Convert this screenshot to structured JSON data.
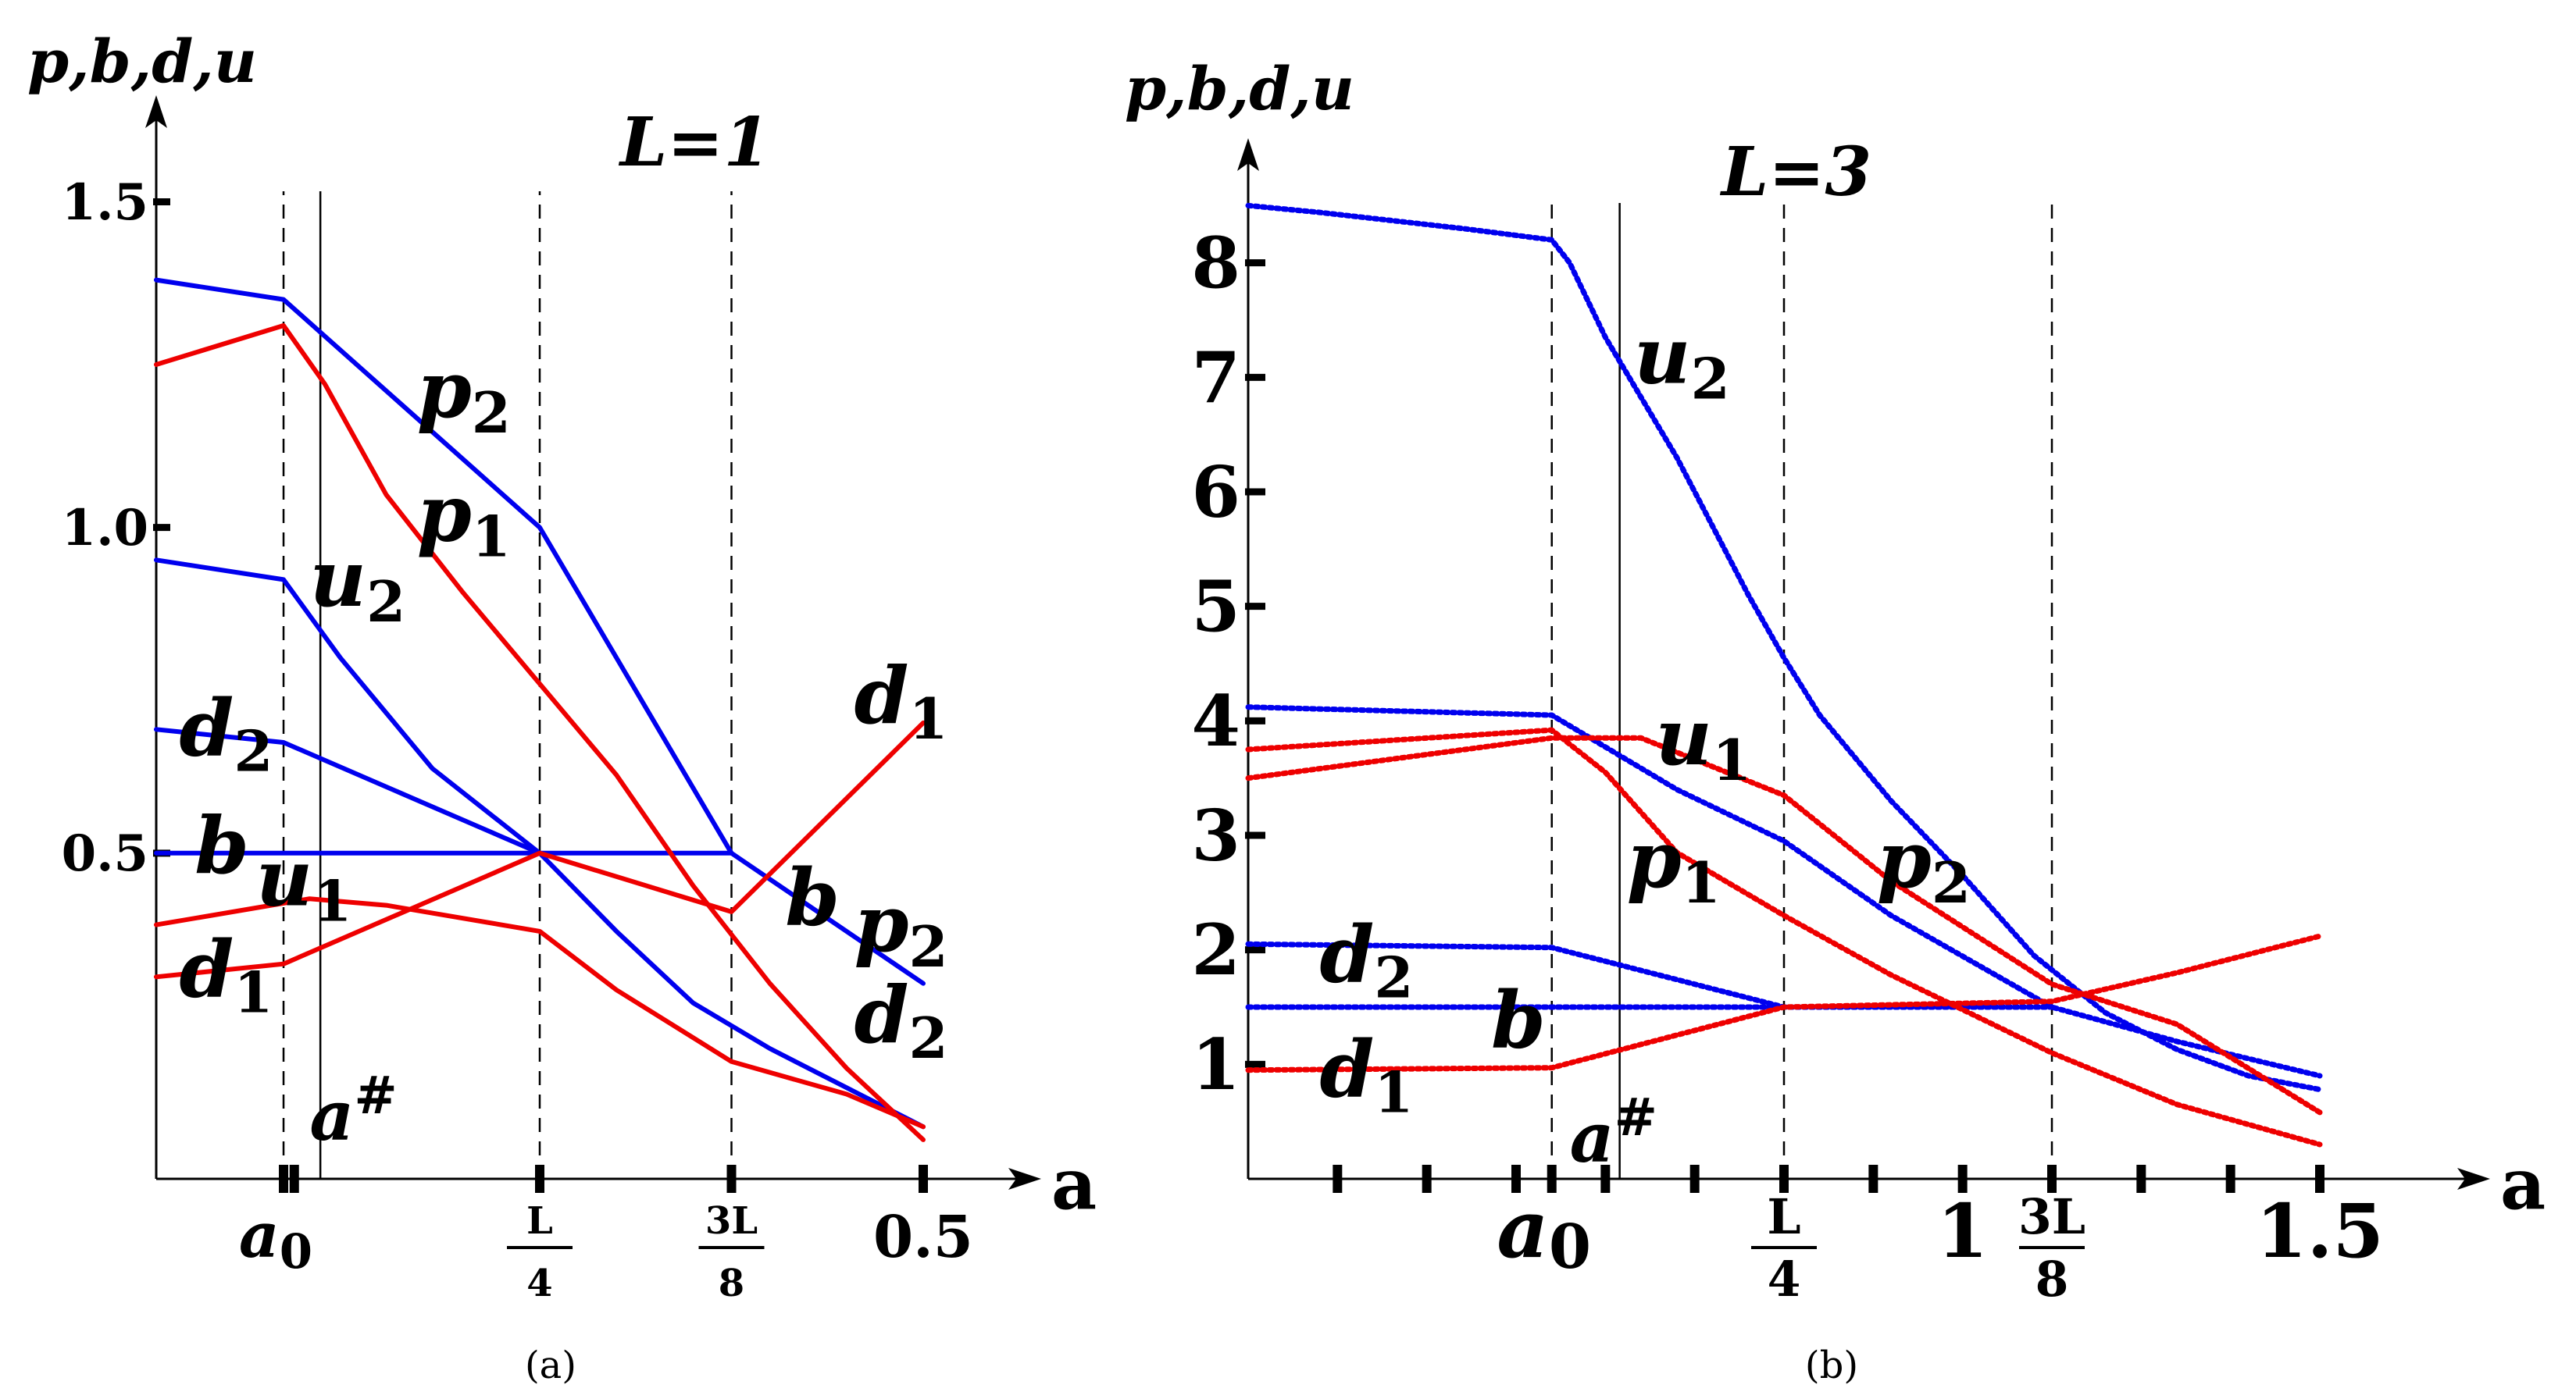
{
  "chart_data": [
    {
      "id": "a",
      "type": "line",
      "caption": "(a)",
      "title": "L=1",
      "ylabel": "p,b,d,u",
      "xlabel": "a",
      "xlim": [
        0,
        0.5
      ],
      "ylim": [
        0,
        1.6
      ],
      "grid": false,
      "yticks": [
        {
          "value": 0.5,
          "label": "0.5"
        },
        {
          "value": 1.0,
          "label": "1.0"
        },
        {
          "value": 1.5,
          "label": "1.5"
        }
      ],
      "xticks": [
        {
          "value": 0.083,
          "label": ""
        },
        {
          "value": 0.09,
          "label": ""
        },
        {
          "value": 0.25,
          "label": ""
        },
        {
          "value": 0.375,
          "label": ""
        },
        {
          "value": 0.5,
          "label": ""
        }
      ],
      "xtick_labels": [
        {
          "value": 0.083,
          "label": "a",
          "sub": "0"
        },
        {
          "value": 0.25,
          "frac": [
            "L",
            "4"
          ]
        },
        {
          "value": 0.375,
          "frac": [
            "3L",
            "8"
          ]
        },
        {
          "value": 0.5,
          "label": "0.5"
        }
      ],
      "vlines": [
        {
          "value": 0.083,
          "style": "dashed"
        },
        {
          "value": 0.107,
          "style": "solid"
        },
        {
          "value": 0.25,
          "style": "dashed"
        },
        {
          "value": 0.375,
          "style": "dashed"
        }
      ],
      "a_sharp": {
        "label": "a",
        "sup": "#",
        "x": 0.1,
        "y": 0.06
      },
      "series": [
        {
          "color": "#0000ee",
          "style": "line",
          "x": [
            0,
            0.083,
            0.25,
            0.375,
            0.5
          ],
          "y": [
            1.38,
            1.35,
            1.0,
            0.5,
            0.3
          ]
        },
        {
          "color": "#0000ee",
          "style": "line",
          "x": [
            0,
            0.083,
            0.12,
            0.18,
            0.25,
            0.3,
            0.35,
            0.4,
            0.45,
            0.5
          ],
          "y": [
            0.95,
            0.92,
            0.8,
            0.63,
            0.5,
            0.38,
            0.27,
            0.2,
            0.14,
            0.08
          ]
        },
        {
          "color": "#0000ee",
          "style": "line",
          "x": [
            0,
            0.083,
            0.25
          ],
          "y": [
            0.69,
            0.67,
            0.5
          ]
        },
        {
          "color": "#0000ee",
          "style": "line",
          "x": [
            0,
            0.375
          ],
          "y": [
            0.5,
            0.5
          ]
        },
        {
          "color": "#ee0000",
          "style": "line",
          "x": [
            0,
            0.083,
            0.11,
            0.15,
            0.2,
            0.25,
            0.3,
            0.35,
            0.4,
            0.45,
            0.5
          ],
          "y": [
            1.25,
            1.31,
            1.22,
            1.05,
            0.9,
            0.76,
            0.62,
            0.45,
            0.3,
            0.17,
            0.06
          ]
        },
        {
          "color": "#ee0000",
          "style": "line",
          "x": [
            0,
            0.083,
            0.25,
            0.375,
            0.5
          ],
          "y": [
            0.31,
            0.33,
            0.5,
            0.41,
            0.7
          ]
        },
        {
          "color": "#ee0000",
          "style": "line",
          "x": [
            0,
            0.1,
            0.15,
            0.25,
            0.3,
            0.375,
            0.45,
            0.5
          ],
          "y": [
            0.39,
            0.43,
            0.42,
            0.38,
            0.29,
            0.18,
            0.13,
            0.08
          ]
        }
      ],
      "curve_labels": [
        {
          "text": "p",
          "sub": "2",
          "x": 0.17,
          "y": 1.17
        },
        {
          "text": "p",
          "sub": "1",
          "x": 0.17,
          "y": 0.98
        },
        {
          "text": "u",
          "sub": "2",
          "x": 0.1,
          "y": 0.88
        },
        {
          "text": "d",
          "sub": "2",
          "x": 0.015,
          "y": 0.65
        },
        {
          "text": "b",
          "sub": "",
          "x": 0.025,
          "y": 0.47
        },
        {
          "text": "u",
          "sub": "1",
          "x": 0.065,
          "y": 0.42
        },
        {
          "text": "d",
          "sub": "1",
          "x": 0.015,
          "y": 0.28
        },
        {
          "text": "d",
          "sub": "1",
          "x": 0.455,
          "y": 0.7
        },
        {
          "text": "b",
          "sub": "",
          "x": 0.41,
          "y": 0.39
        },
        {
          "text": "p",
          "sub": "2",
          "x": 0.455,
          "y": 0.35
        },
        {
          "text": "d",
          "sub": "2",
          "x": 0.455,
          "y": 0.21
        }
      ]
    },
    {
      "id": "b",
      "type": "line",
      "caption": "(b)",
      "title": "L=3",
      "ylabel": "p,b,d,u",
      "xlabel": "a",
      "xlim": [
        0,
        1.5
      ],
      "ylim": [
        0,
        9
      ],
      "grid": false,
      "yticks": [
        {
          "value": 1,
          "label": "1"
        },
        {
          "value": 2,
          "label": "2"
        },
        {
          "value": 3,
          "label": "3"
        },
        {
          "value": 4,
          "label": "4"
        },
        {
          "value": 5,
          "label": "5"
        },
        {
          "value": 6,
          "label": "6"
        },
        {
          "value": 7,
          "label": "7"
        },
        {
          "value": 8,
          "label": "8"
        }
      ],
      "xticks": [
        {
          "value": 0.125,
          "label": ""
        },
        {
          "value": 0.25,
          "label": ""
        },
        {
          "value": 0.375,
          "label": ""
        },
        {
          "value": 0.425,
          "label": ""
        },
        {
          "value": 0.5,
          "label": ""
        },
        {
          "value": 0.625,
          "label": ""
        },
        {
          "value": 0.75,
          "label": ""
        },
        {
          "value": 0.875,
          "label": ""
        },
        {
          "value": 1.0,
          "label": ""
        },
        {
          "value": 1.125,
          "label": ""
        },
        {
          "value": 1.25,
          "label": ""
        },
        {
          "value": 1.375,
          "label": ""
        },
        {
          "value": 1.5,
          "label": ""
        }
      ],
      "xtick_labels": [
        {
          "value": 0.425,
          "label": "a",
          "sub": "0"
        },
        {
          "value": 0.75,
          "frac": [
            "L",
            "4"
          ]
        },
        {
          "value": 1.0,
          "label": "1"
        },
        {
          "value": 1.125,
          "frac": [
            "3L",
            "8"
          ]
        },
        {
          "value": 1.5,
          "label": "1.5"
        }
      ],
      "vlines": [
        {
          "value": 0.425,
          "style": "dashed"
        },
        {
          "value": 0.52,
          "style": "solid"
        },
        {
          "value": 0.75,
          "style": "dashed"
        },
        {
          "value": 1.125,
          "style": "dashed"
        }
      ],
      "a_sharp": {
        "label": "a",
        "sup": "#",
        "x": 0.45,
        "y": 0.15
      },
      "series": [
        {
          "color": "#0000ee",
          "style": "dots",
          "x": [
            0,
            0.1,
            0.2,
            0.3,
            0.425,
            0.45,
            0.5,
            0.6,
            0.7,
            0.75,
            0.8,
            0.9,
            1.0,
            1.1,
            1.2,
            1.3,
            1.4,
            1.5
          ],
          "y": [
            8.5,
            8.44,
            8.37,
            8.3,
            8.2,
            8.0,
            7.35,
            6.3,
            5.1,
            4.55,
            4.05,
            3.3,
            2.65,
            1.95,
            1.45,
            1.13,
            0.9,
            0.78
          ]
        },
        {
          "color": "#0000ee",
          "style": "dots",
          "x": [
            0,
            0.425,
            0.6,
            0.75,
            0.9,
            1.125,
            1.3,
            1.5
          ],
          "y": [
            4.12,
            4.05,
            3.4,
            2.95,
            2.3,
            1.5,
            1.2,
            0.9
          ]
        },
        {
          "color": "#0000ee",
          "style": "dots",
          "x": [
            0,
            0.425,
            0.75
          ],
          "y": [
            2.05,
            2.02,
            1.5
          ]
        },
        {
          "color": "#0000ee",
          "style": "dots",
          "x": [
            0,
            1.125
          ],
          "y": [
            1.5,
            1.5
          ]
        },
        {
          "color": "#ee0000",
          "style": "dots",
          "x": [
            0,
            0.425,
            0.55,
            0.75,
            0.9,
            1.125,
            1.3,
            1.5
          ],
          "y": [
            3.5,
            3.85,
            3.85,
            3.35,
            2.6,
            1.7,
            1.35,
            0.58
          ]
        },
        {
          "color": "#ee0000",
          "style": "dots",
          "x": [
            0,
            0.425,
            0.5,
            0.6,
            0.75,
            0.9,
            1.125,
            1.3,
            1.5
          ],
          "y": [
            3.75,
            3.92,
            3.55,
            2.85,
            2.3,
            1.78,
            1.1,
            0.65,
            0.3
          ]
        },
        {
          "color": "#ee0000",
          "style": "dots",
          "x": [
            0,
            0.425,
            0.75,
            1.125,
            1.3,
            1.5
          ],
          "y": [
            0.95,
            0.97,
            1.5,
            1.55,
            1.8,
            2.12
          ]
        }
      ],
      "curve_labels": [
        {
          "text": "u",
          "sub": "2",
          "x": 0.54,
          "y": 6.95
        },
        {
          "text": "u",
          "sub": "1",
          "x": 0.57,
          "y": 3.62
        },
        {
          "text": "p",
          "sub": "1",
          "x": 0.53,
          "y": 2.55
        },
        {
          "text": "p",
          "sub": "2",
          "x": 0.88,
          "y": 2.55
        },
        {
          "text": "d",
          "sub": "2",
          "x": 0.1,
          "y": 1.72
        },
        {
          "text": "b",
          "sub": "",
          "x": 0.34,
          "y": 1.15
        },
        {
          "text": "d",
          "sub": "1",
          "x": 0.1,
          "y": 0.72
        }
      ]
    }
  ]
}
